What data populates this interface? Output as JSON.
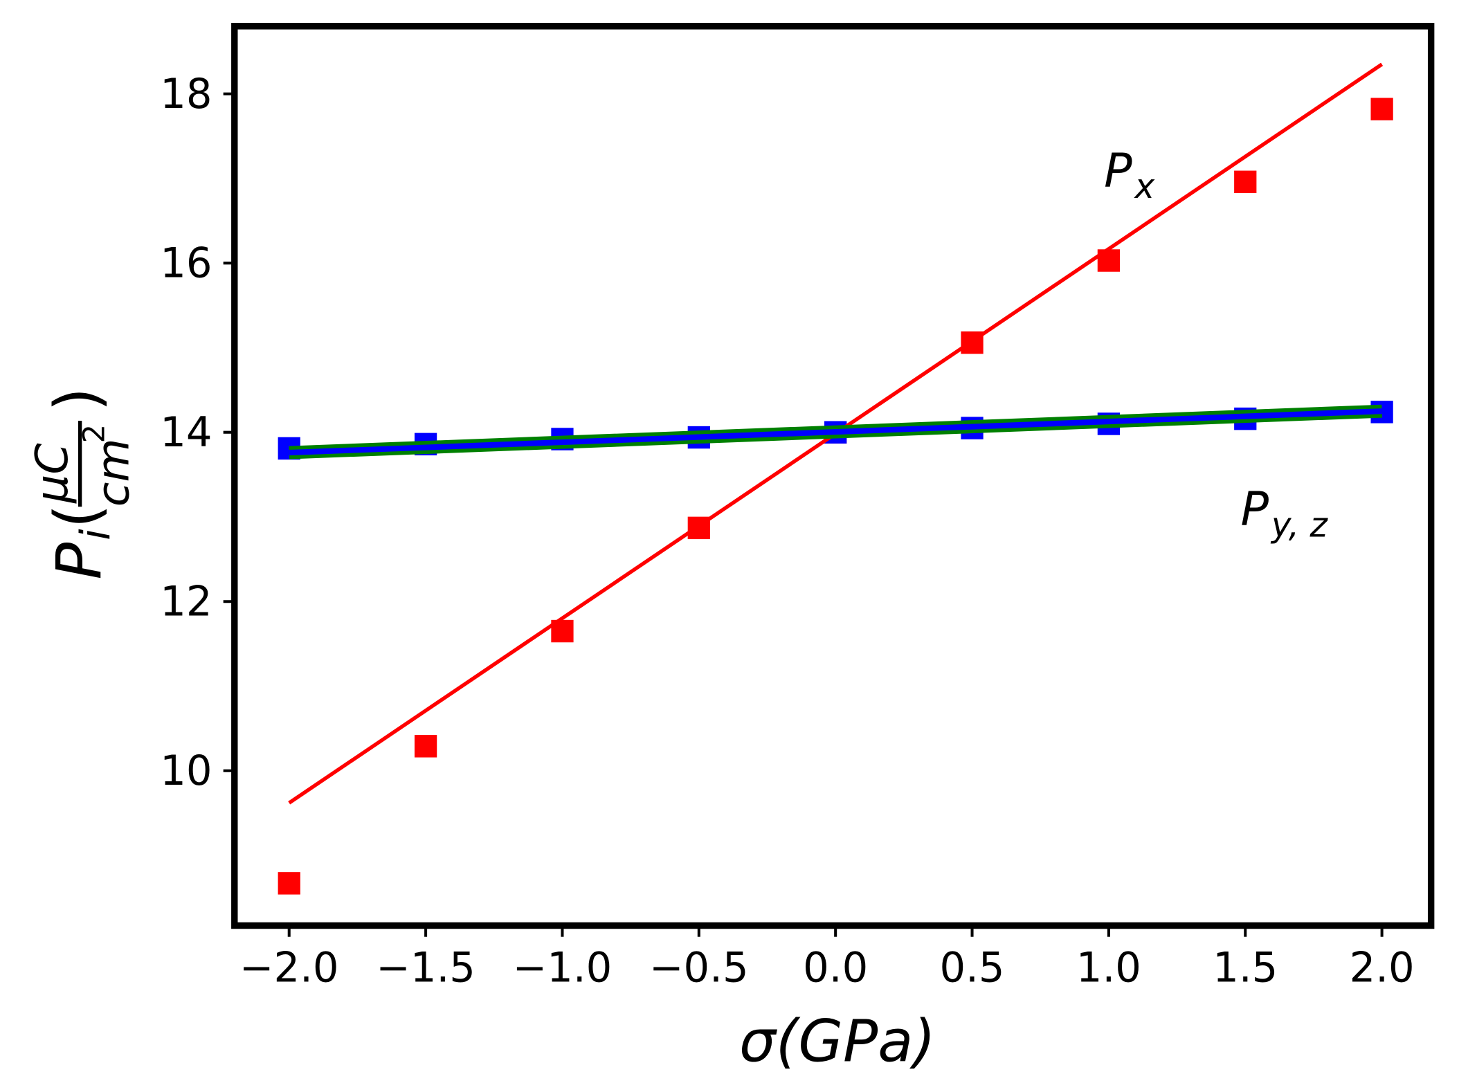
{
  "chart_data": {
    "type": "scatter",
    "title": "",
    "xlabel": "σ(GPa)",
    "ylabel": "P_i(μC/cm²)",
    "ylabel_parts": {
      "main": "P",
      "sub": "i",
      "num": "μC",
      "den": "cm",
      "sup": "2"
    },
    "xlim": [
      -2.2,
      2.18
    ],
    "ylim": [
      8.17,
      18.8
    ],
    "grid": false,
    "x_ticks": [
      -2.0,
      -1.5,
      -1.0,
      -0.5,
      0.0,
      0.5,
      1.0,
      1.5,
      2.0
    ],
    "x_tick_labels": [
      "−2.0",
      "−1.5",
      "−1.0",
      "−0.5",
      "0.0",
      "0.5",
      "1.0",
      "1.5",
      "2.0"
    ],
    "y_ticks": [
      10,
      12,
      14,
      16,
      18
    ],
    "y_tick_labels": [
      "10",
      "12",
      "14",
      "16",
      "18"
    ],
    "series": [
      {
        "x": [
          -2.0,
          -1.5,
          -1.0,
          -0.5,
          0.0,
          0.5,
          1.0,
          1.5,
          2.0
        ],
        "values": [
          8.67,
          10.29,
          11.65,
          12.87,
          14.0,
          15.06,
          16.03,
          16.96,
          17.82
        ],
        "color": "#ff0000",
        "marker": "square",
        "fit_line": {
          "x": [
            -2.0,
            2.0
          ],
          "y": [
            9.62,
            18.35
          ],
          "color": "#ff0000"
        }
      },
      {
        "x": [
          -2.0,
          -1.5,
          -1.0,
          -0.5,
          0.0,
          0.5,
          1.0,
          1.5,
          2.0
        ],
        "values": [
          13.81,
          13.86,
          13.92,
          13.94,
          14.0,
          14.05,
          14.1,
          14.16,
          14.24
        ],
        "color": "#0000ff",
        "marker": "square",
        "fit_line": {
          "x": [
            -2.0,
            2.0
          ],
          "y": [
            13.76,
            14.25
          ],
          "color": "#0000ff",
          "outline_color": "#008000"
        }
      }
    ],
    "annotations": [
      {
        "main": "P",
        "sub": "x",
        "x": 1.0,
        "y": 17.1
      },
      {
        "main": "P",
        "sub": "y, z",
        "x": 1.5,
        "y": 13.1
      }
    ]
  }
}
